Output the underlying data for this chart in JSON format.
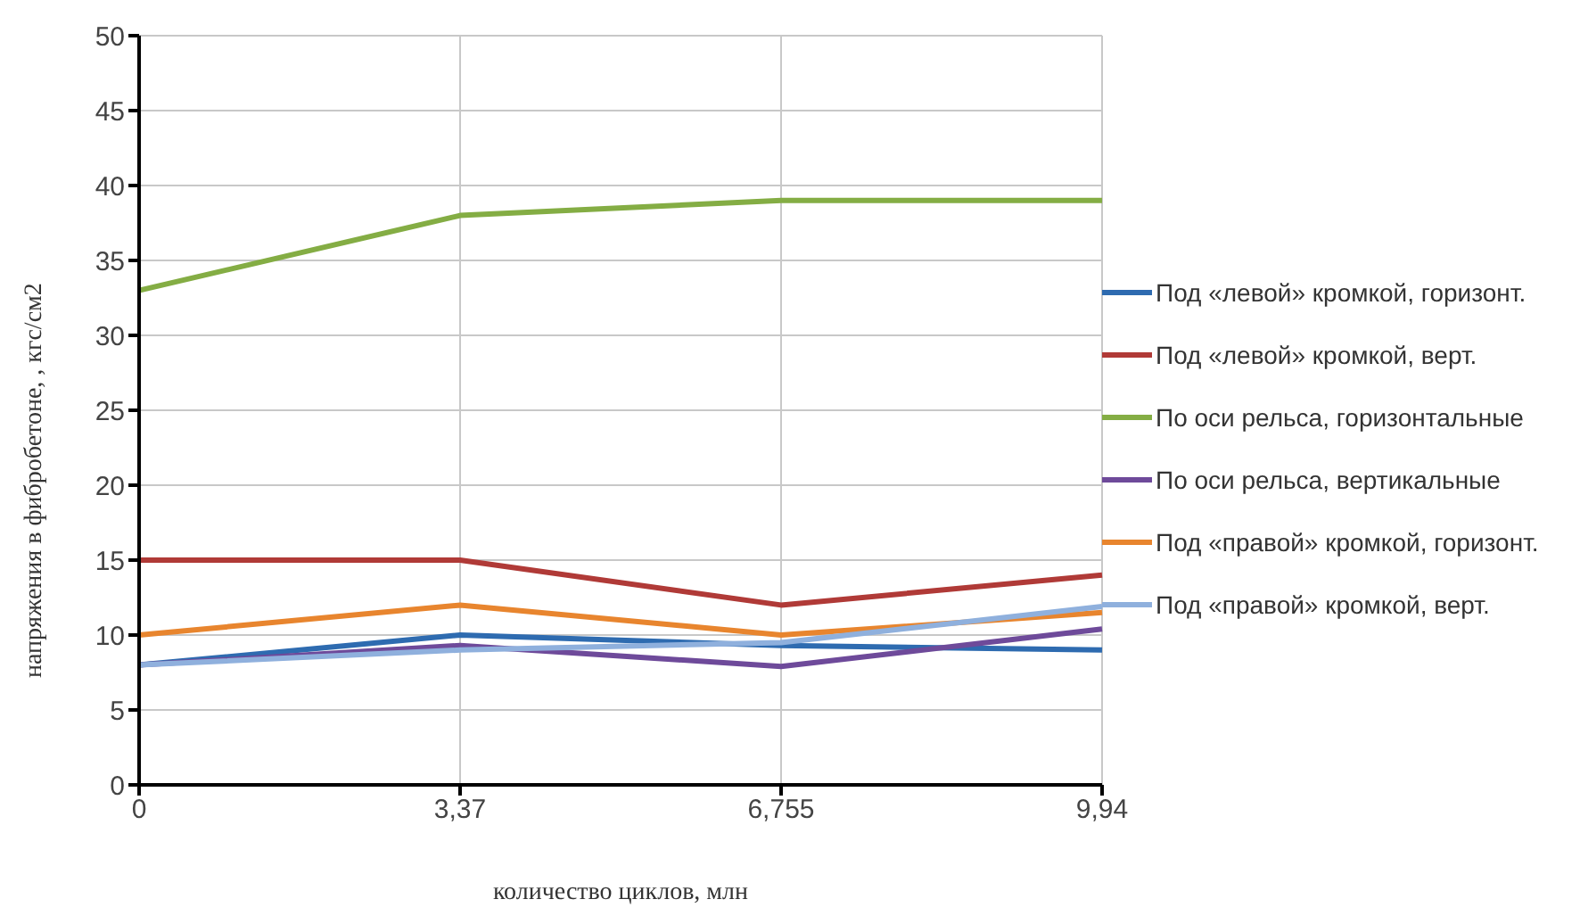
{
  "chart_data": {
    "type": "line",
    "xlabel": "количество циклов, млн",
    "ylabel": "напряжения в фибробетоне, , кгс/см2",
    "categories": [
      "0",
      "3,37",
      "6,755",
      "9,94"
    ],
    "series": [
      {
        "name": "Под «левой» кромкой, горизонт.",
        "color": "#2e6bb0",
        "values": [
          8,
          10,
          9.3,
          9
        ]
      },
      {
        "name": "Под «левой» кромкой, верт.",
        "color": "#b03a37",
        "values": [
          15,
          15,
          12,
          14
        ]
      },
      {
        "name": "По оси рельса, горизонтальные",
        "color": "#84ad44",
        "values": [
          33,
          38,
          39,
          39
        ]
      },
      {
        "name": "По оси рельса, вертикальные",
        "color": "#6e4a9a",
        "values": [
          8,
          9.3,
          7.9,
          10.4
        ]
      },
      {
        "name": "Под «правой» кромкой, горизонт.",
        "color": "#e8852e",
        "values": [
          10,
          12,
          10,
          11.5
        ]
      },
      {
        "name": "Под «правой» кромкой, верт.",
        "color": "#8fb0dd",
        "values": [
          8,
          9,
          9.5,
          11.9
        ]
      }
    ],
    "ylim": [
      0,
      50
    ],
    "yticks": [
      0,
      5,
      10,
      15,
      20,
      25,
      30,
      35,
      40,
      45,
      50
    ],
    "grid": true,
    "legend": "right",
    "marker": "none",
    "line_style": "solid"
  }
}
